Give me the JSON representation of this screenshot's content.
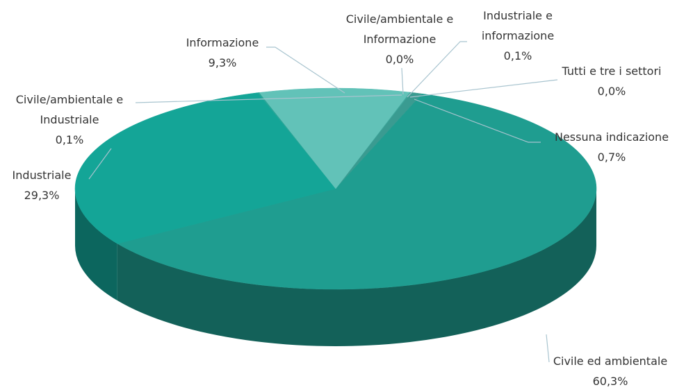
{
  "chart_data": {
    "type": "pie",
    "three_d": true,
    "categories": [
      "Civile/ambientale e\nInformazione",
      "Industriale e\ninformazione",
      "Tutti e tre i settori",
      "Nessuna indicazione",
      "Civile ed ambientale",
      "Industriale",
      "Civile/ambientale e\nIndustriale",
      "Informazione"
    ],
    "values": [
      0.0,
      0.1,
      0.0,
      0.7,
      60.3,
      29.3,
      0.1,
      9.3
    ],
    "value_labels": [
      "0,0%",
      "0,1%",
      "0,0%",
      "0,7%",
      "60,3%",
      "29,3%",
      "0,1%",
      "9,3%"
    ],
    "colors": [
      "#3fa79c",
      "#3fa79c",
      "#3fa79c",
      "#3a9b91",
      "#1f9d90",
      "#14a597",
      "#2aa597",
      "#62c2b8"
    ]
  }
}
